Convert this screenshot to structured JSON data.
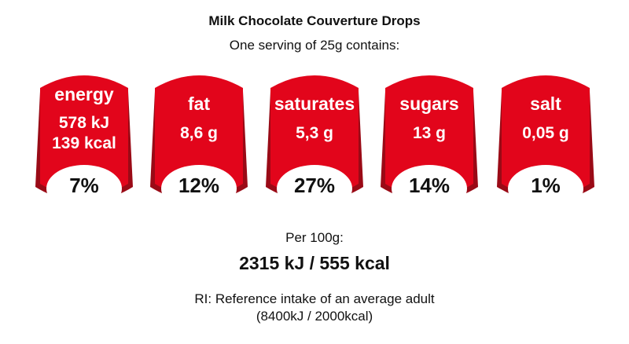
{
  "header": {
    "title": "Milk Chocolate Couverture Drops",
    "subtitle": "One serving of 25g contains:"
  },
  "badges": [
    {
      "name": "energy",
      "line1": "578 kJ",
      "line2": "139 kcal",
      "percent": "7%"
    },
    {
      "name": "fat",
      "line1": "8,6 g",
      "line2": "",
      "percent": "12%"
    },
    {
      "name": "saturates",
      "line1": "5,3 g",
      "line2": "",
      "percent": "27%"
    },
    {
      "name": "sugars",
      "line1": "13 g",
      "line2": "",
      "percent": "14%"
    },
    {
      "name": "salt",
      "line1": "0,05 g",
      "line2": "",
      "percent": "1%"
    }
  ],
  "per100": {
    "label": "Per 100g:",
    "value": "2315 kJ / 555 kcal"
  },
  "reference": {
    "line1": "RI: Reference intake of an average adult",
    "line2": "(8400kJ / 2000kcal)"
  },
  "colors": {
    "badge_fill": "#e2051b",
    "badge_shadow": "#9a0a16",
    "badge_dark_edge": "#b0081a",
    "percent_disc": "#ffffff"
  }
}
